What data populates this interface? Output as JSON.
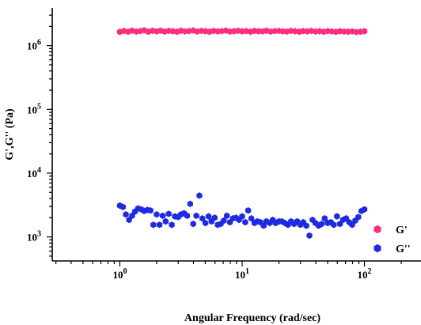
{
  "chart_data": {
    "type": "scatter",
    "title": "",
    "xlabel": "Angular Frequency (rad/sec)",
    "ylabel": "G',G'' (Pa)",
    "xscale": "log",
    "yscale": "log",
    "xlim": [
      0.28,
      290
    ],
    "ylim": [
      420,
      3900000
    ],
    "grid": false,
    "legend_position": "bottom-right",
    "x_ticks": [
      {
        "value": 1,
        "base": "10",
        "exp": "0"
      },
      {
        "value": 10,
        "base": "10",
        "exp": "1"
      },
      {
        "value": 100,
        "base": "10",
        "exp": "2"
      }
    ],
    "y_ticks": [
      {
        "value": 1000,
        "base": "10",
        "exp": "3"
      },
      {
        "value": 10000,
        "base": "10",
        "exp": "4"
      },
      {
        "value": 100000,
        "base": "10",
        "exp": "5"
      },
      {
        "value": 1000000,
        "base": "10",
        "exp": "6"
      }
    ],
    "series": [
      {
        "name": "G'",
        "color": "#ff2d7e",
        "marker": "hexagon",
        "x": [
          1.0,
          1.08,
          1.17,
          1.26,
          1.36,
          1.47,
          1.58,
          1.71,
          1.85,
          2.0,
          2.15,
          2.32,
          2.51,
          2.71,
          2.93,
          3.16,
          3.41,
          3.68,
          3.98,
          4.29,
          4.64,
          5.01,
          5.41,
          5.84,
          6.31,
          6.81,
          7.36,
          7.94,
          8.58,
          9.26,
          10.0,
          10.8,
          11.7,
          12.6,
          13.6,
          14.7,
          15.8,
          17.1,
          18.5,
          20.0,
          21.5,
          23.2,
          25.1,
          27.1,
          29.3,
          31.6,
          34.1,
          36.8,
          39.8,
          42.9,
          46.4,
          50.1,
          54.1,
          58.4,
          63.1,
          68.1,
          73.6,
          79.4,
          85.8,
          92.6,
          100.0
        ],
        "y": [
          1640000,
          1700000,
          1650000,
          1720000,
          1660000,
          1690000,
          1740000,
          1650000,
          1710000,
          1670000,
          1720000,
          1660000,
          1700000,
          1680000,
          1650000,
          1710000,
          1670000,
          1690000,
          1730000,
          1660000,
          1700000,
          1680000,
          1650000,
          1700000,
          1670000,
          1690000,
          1720000,
          1660000,
          1680000,
          1710000,
          1670000,
          1690000,
          1650000,
          1700000,
          1680000,
          1670000,
          1710000,
          1660000,
          1690000,
          1700000,
          1670000,
          1660000,
          1700000,
          1680000,
          1650000,
          1690000,
          1670000,
          1700000,
          1660000,
          1680000,
          1650000,
          1690000,
          1670000,
          1640000,
          1680000,
          1660000,
          1650000,
          1670000,
          1630000,
          1650000,
          1680000
        ]
      },
      {
        "name": "G''",
        "color": "#1f2be0",
        "marker": "hexagon",
        "x": [
          1.0,
          1.06,
          1.12,
          1.19,
          1.26,
          1.33,
          1.41,
          1.5,
          1.58,
          1.68,
          1.78,
          1.88,
          2.0,
          2.11,
          2.24,
          2.37,
          2.51,
          2.66,
          2.82,
          2.99,
          3.16,
          3.35,
          3.55,
          3.76,
          3.98,
          4.22,
          4.47,
          4.73,
          5.01,
          5.31,
          5.62,
          5.96,
          6.31,
          6.68,
          7.08,
          7.5,
          7.94,
          8.41,
          8.91,
          9.44,
          10.0,
          10.6,
          11.2,
          11.9,
          12.6,
          13.3,
          14.1,
          15.0,
          15.8,
          16.8,
          17.8,
          18.8,
          20.0,
          21.1,
          22.4,
          23.7,
          25.1,
          26.6,
          28.2,
          29.9,
          31.6,
          33.5,
          35.5,
          37.6,
          39.8,
          42.2,
          44.7,
          47.3,
          50.1,
          53.1,
          56.2,
          59.6,
          63.1,
          66.8,
          70.8,
          75.0,
          79.4,
          84.1,
          89.1,
          94.4,
          100.0
        ],
        "y": [
          3100,
          2950,
          2250,
          1850,
          2150,
          2500,
          2800,
          2700,
          2550,
          2650,
          2600,
          1550,
          2250,
          1550,
          2150,
          1750,
          2300,
          1550,
          2100,
          2050,
          2250,
          2350,
          2150,
          3300,
          1600,
          2150,
          4450,
          1950,
          1650,
          2100,
          1750,
          2000,
          1550,
          1600,
          1800,
          2150,
          1700,
          1950,
          2000,
          1850,
          2100,
          1700,
          2600,
          1950,
          1650,
          1750,
          1700,
          1500,
          1750,
          1650,
          1850,
          1650,
          1750,
          1750,
          1650,
          1550,
          1750,
          1600,
          1750,
          1550,
          1700,
          1500,
          1050,
          1850,
          1650,
          1500,
          1600,
          1950,
          1650,
          1700,
          1550,
          2100,
          1600,
          1850,
          1950,
          1700,
          1550,
          1800,
          2050,
          2550,
          2700
        ]
      }
    ]
  }
}
